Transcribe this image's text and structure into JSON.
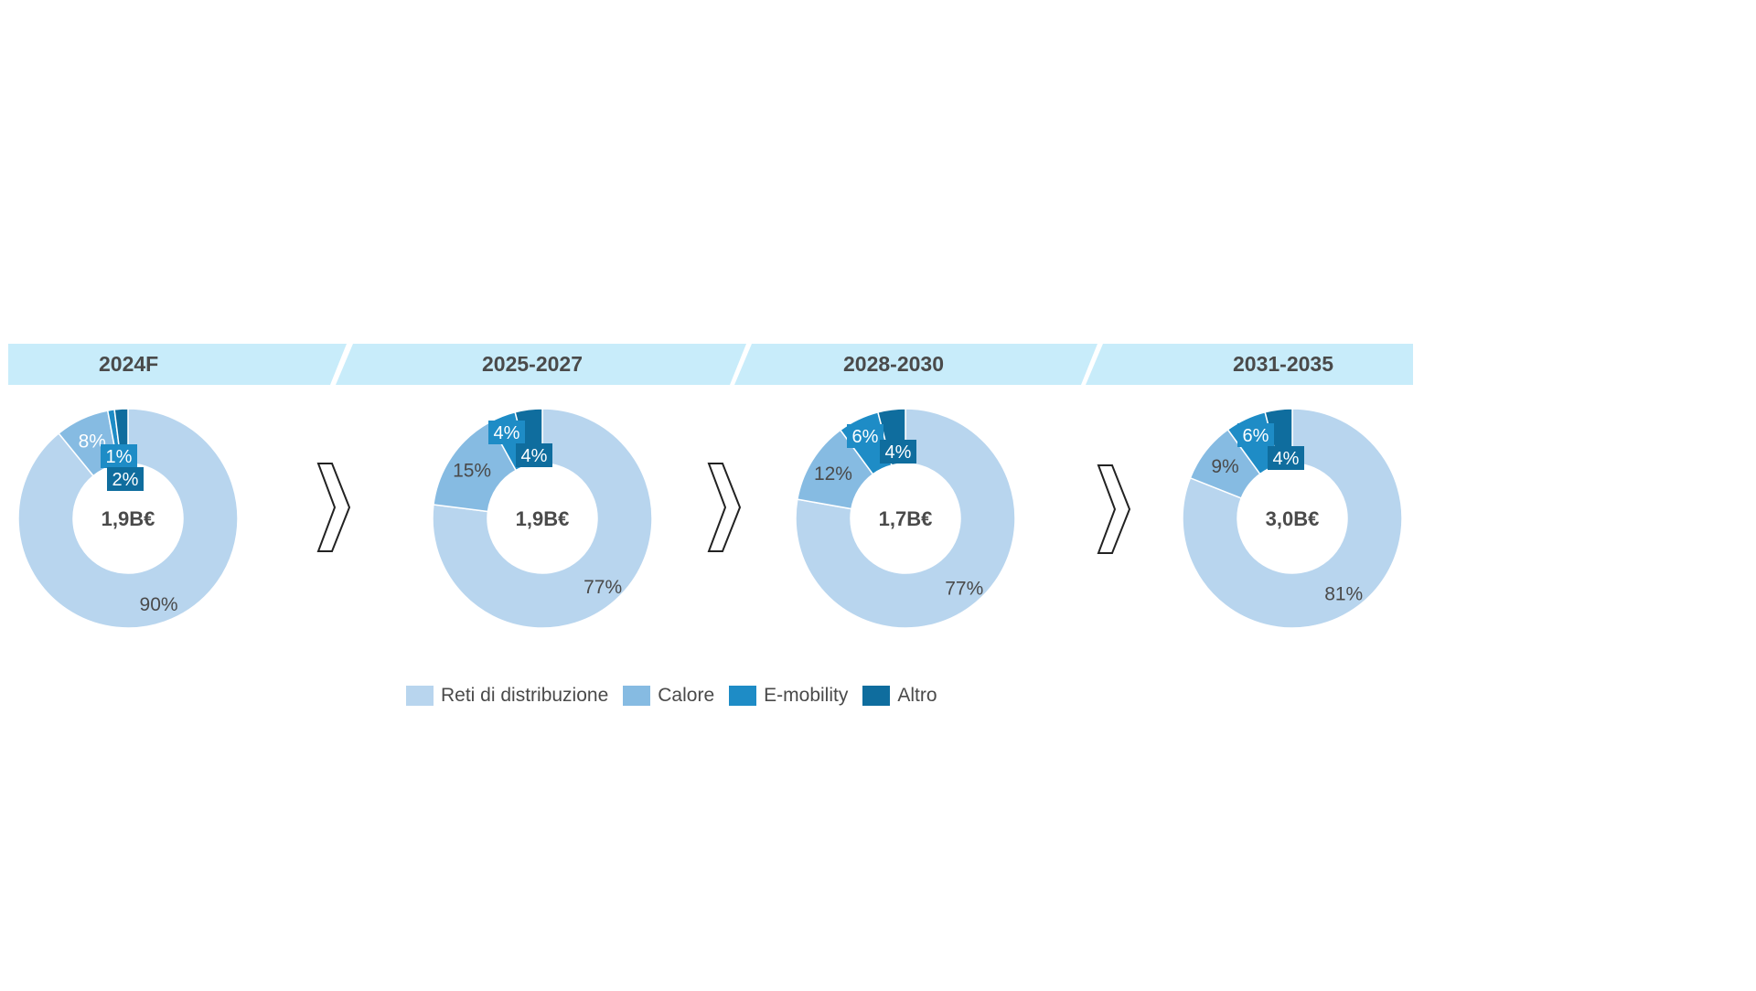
{
  "chart_data": {
    "type": "pie",
    "series_names": [
      "Reti di distribuzione",
      "Calore",
      "E-mobility",
      "Altro"
    ],
    "colors": [
      "#b8d5ee",
      "#86bbe2",
      "#1e8cc6",
      "#0f6d9e"
    ],
    "header_color": "#c8ecfa",
    "charts": [
      {
        "period": "2024F",
        "total": "1,9B€",
        "values": [
          90,
          8,
          1,
          2
        ],
        "labels": [
          "90%",
          "8%",
          "1%",
          "2%"
        ]
      },
      {
        "period": "2025-2027",
        "total": "1,9B€",
        "values": [
          77,
          15,
          4,
          4
        ],
        "labels": [
          "77%",
          "15%",
          "4%",
          "4%"
        ]
      },
      {
        "period": "2028-2030",
        "total": "1,7B€",
        "values": [
          77,
          12,
          6,
          4
        ],
        "labels": [
          "77%",
          "12%",
          "6%",
          "4%"
        ]
      },
      {
        "period": "2031-2035",
        "total": "3,0B€",
        "values": [
          81,
          9,
          6,
          4
        ],
        "labels": [
          "81%",
          "9%",
          "6%",
          "4%"
        ]
      }
    ]
  }
}
